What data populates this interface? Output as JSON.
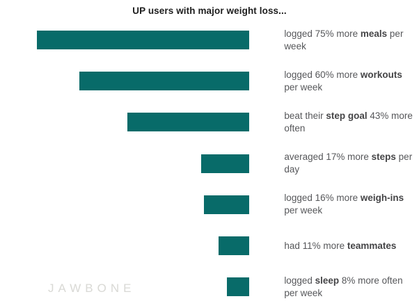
{
  "chart_data": {
    "type": "bar",
    "orientation": "horizontal",
    "bars_right_aligned": true,
    "grid": false,
    "legend": false,
    "title": "UP users with major weight loss...",
    "unit": "percent",
    "xlim": [
      0,
      75
    ],
    "bar_color": "#086b69",
    "categories": [
      "meals logged per week",
      "workouts logged per week",
      "step goal beaten",
      "steps per day",
      "weigh-ins logged per week",
      "teammates",
      "sleep logged per week"
    ],
    "values": [
      75,
      60,
      43,
      17,
      16,
      11,
      8
    ],
    "bars": [
      {
        "name": "meals",
        "value": 75,
        "label_text": "logged 75% more meals per week",
        "segments": [
          {
            "t": "logged 75% more "
          },
          {
            "t": "meals",
            "b": true
          },
          {
            "t": " per"
          },
          {
            "br": true
          },
          {
            "t": "week"
          }
        ]
      },
      {
        "name": "workouts",
        "value": 60,
        "label_text": "logged 60% more workouts per week",
        "segments": [
          {
            "t": "logged 60% more "
          },
          {
            "t": "workouts",
            "b": true
          },
          {
            "br": true
          },
          {
            "t": "per week"
          }
        ]
      },
      {
        "name": "step-goal",
        "value": 43,
        "label_text": "beat their step goal 43% more often",
        "segments": [
          {
            "t": "beat their "
          },
          {
            "t": "step goal",
            "b": true
          },
          {
            "t": " 43% more"
          },
          {
            "br": true
          },
          {
            "t": "often"
          }
        ]
      },
      {
        "name": "steps",
        "value": 17,
        "label_text": "averaged 17% more steps per day",
        "segments": [
          {
            "t": "averaged 17% more "
          },
          {
            "t": "steps",
            "b": true
          },
          {
            "t": " per"
          },
          {
            "br": true
          },
          {
            "t": "day"
          }
        ]
      },
      {
        "name": "weigh-ins",
        "value": 16,
        "label_text": "logged 16% more weigh-ins per week",
        "segments": [
          {
            "t": "logged 16% more "
          },
          {
            "t": "weigh-ins",
            "b": true
          },
          {
            "br": true
          },
          {
            "t": "per week"
          }
        ]
      },
      {
        "name": "teammates",
        "value": 11,
        "label_text": "had 11% more teammates",
        "segments": [
          {
            "t": "had 11% more "
          },
          {
            "t": "teammates",
            "b": true
          }
        ]
      },
      {
        "name": "sleep",
        "value": 8,
        "label_text": "logged sleep 8% more often per week",
        "segments": [
          {
            "t": "logged "
          },
          {
            "t": "sleep",
            "b": true
          },
          {
            "t": " 8% more often"
          },
          {
            "br": true
          },
          {
            "t": "per week"
          }
        ]
      }
    ]
  },
  "footer": {
    "brand": "JAWBONE"
  },
  "colors": {
    "bar": "#086b69",
    "title_text": "#1e1e1e",
    "label_text": "#56575a",
    "brand_text": "#d9d9d5",
    "background": "#ffffff"
  }
}
